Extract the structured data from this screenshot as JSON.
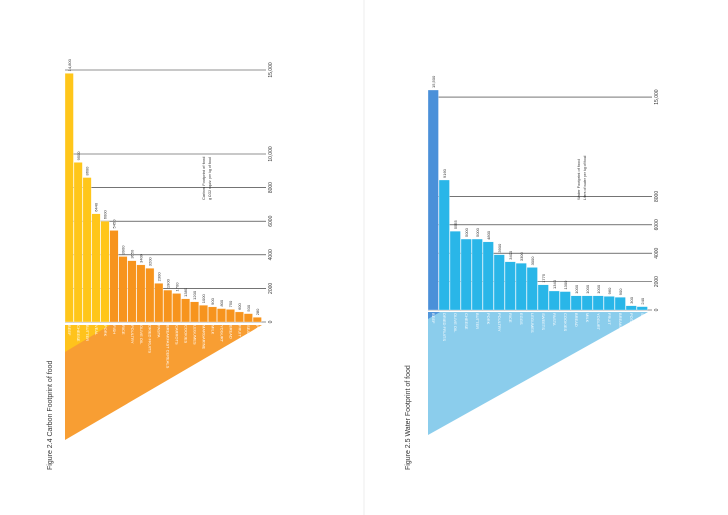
{
  "chart_data": [
    {
      "type": "bar",
      "title": "Figure 2.4 Carbon Footprint of food",
      "legend_title": "Carbon Footprint of food",
      "legend_subtitle": "g CO2 equiv. per kg of food",
      "categories": [
        "BEEF",
        "CHEESE",
        "BUTTER",
        "VEAL",
        "PORK",
        "FISH",
        "RICE",
        "POULTRY",
        "OLIVE OIL",
        "DRIED FRUITS",
        "PASTA",
        "BREAKFAST CEREALS",
        "CARROTS",
        "COOKIES",
        "LEGUMES",
        "MARGARINE",
        "MILK",
        "YOGURT",
        "BREAD",
        "FRUIT",
        "SEASON VEGETABLES",
        "POTATOES"
      ],
      "values": [
        14800,
        9500,
        8600,
        6440,
        6000,
        5450,
        3900,
        3650,
        3400,
        3200,
        2300,
        1900,
        1700,
        1380,
        1200,
        1000,
        900,
        800,
        750,
        600,
        500,
        280
      ],
      "value_labels": [
        "14,800",
        "9500",
        "8600",
        "6440",
        "6000",
        "5450",
        "3900",
        "3650",
        "3400",
        "3200",
        "2300",
        "1900",
        "1700",
        "1380",
        "1200",
        "1000",
        "900",
        "800",
        "750",
        "600",
        "500",
        "280"
      ],
      "colors": [
        "#ffc61a",
        "#f7941d"
      ],
      "split": 5,
      "ylim": [
        0,
        15000
      ],
      "yticks": [
        0,
        2000,
        4000,
        6000,
        8000,
        {
          "value": 10000,
          "label": "10,000"
        },
        {
          "value": 15000,
          "label": "15,000"
        }
      ]
    },
    {
      "type": "bar",
      "title": "Figure 2.5 Water Footprint of food",
      "legend_title": "Water Footprint of food",
      "legend_subtitle": "Liters of water per kg of food",
      "categories": [
        "BEEF",
        "DRIED FRUITS",
        "OLIVE OIL",
        "CHEESE",
        "BUTTER",
        "PORK",
        "POULTRY",
        "RICE",
        "EGGS",
        "LEGUMES",
        "SWEETS",
        "PASTA",
        "COOKIES",
        "BREAD",
        "MILK",
        "YOGURT",
        "FRUIT",
        "BREAKFAST CEREALS",
        "POTATOES",
        "SEASONAL VEGETABLES"
      ],
      "values": [
        15500,
        9160,
        5555,
        5000,
        5000,
        4800,
        3900,
        3400,
        3300,
        3000,
        1775,
        1340,
        1300,
        1000,
        1000,
        1000,
        960,
        900,
        300,
        240
      ],
      "value_labels": [
        "15,500",
        "9160",
        "5555",
        "5000",
        "5000",
        "4800",
        "3900",
        "3400",
        "3300",
        "3000",
        "1775",
        "1340",
        "1300",
        "1000",
        "1000",
        "1000",
        "960",
        "900",
        "300",
        "240"
      ],
      "colors": [
        "#4a90d9",
        "#29b6e8"
      ],
      "split": 1,
      "ylim": [
        0,
        15500
      ],
      "yticks": [
        0,
        2000,
        4000,
        6000,
        8000,
        {
          "value": 15000,
          "label": "15,000"
        }
      ]
    }
  ]
}
